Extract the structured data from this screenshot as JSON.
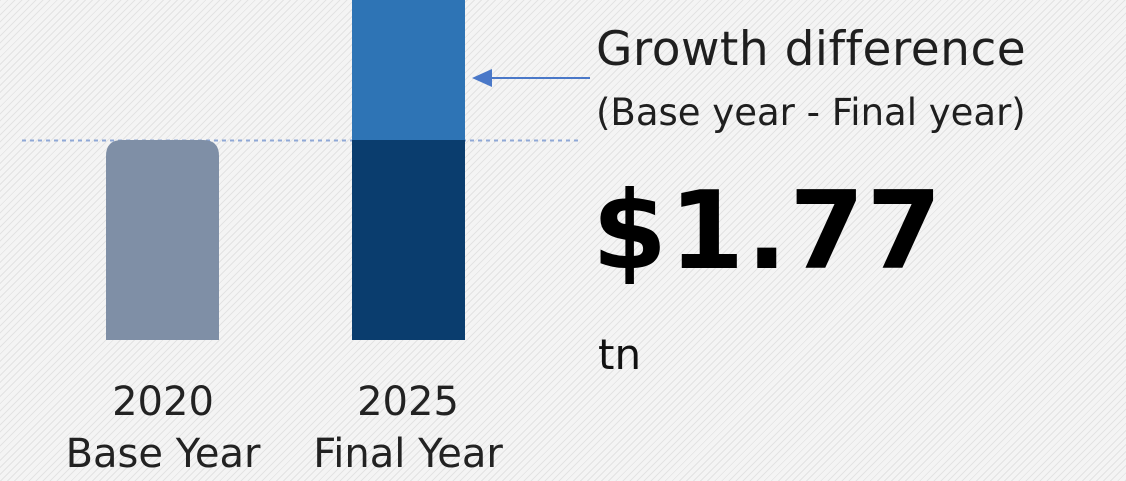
{
  "chart_data": {
    "type": "bar",
    "categories": [
      {
        "year": "2020",
        "label": "Base Year"
      },
      {
        "year": "2025",
        "label": "Final Year"
      }
    ],
    "values": [
      1.77,
      3.54
    ],
    "base_value": 1.77,
    "difference": 1.77,
    "colors": {
      "base_bar": "#7f8fa6",
      "final_bar_lower": "#0a3d6e",
      "final_bar_upper": "#2e74b5",
      "guide_line": "#8fa8d6",
      "arrow": "#4a78c8"
    }
  },
  "annotation": {
    "title": "Growth difference",
    "subtitle": "(Base year - Final year)",
    "value": "$1.77",
    "unit": "tn"
  }
}
